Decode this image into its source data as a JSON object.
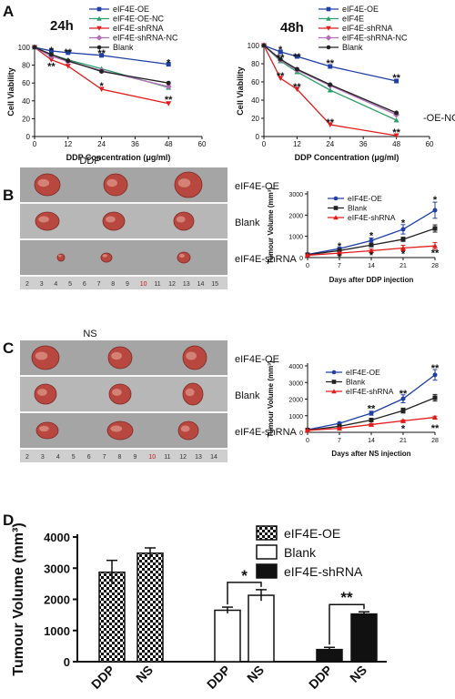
{
  "panels": {
    "A": "A",
    "B": "B",
    "C": "C",
    "D": "D"
  },
  "photos": {
    "B": {
      "title": "DDP",
      "labels": [
        "eIF4E-OE",
        "Blank",
        "eIF4E-shRNA"
      ],
      "ruler": [
        "2",
        "3",
        "4",
        "5",
        "6",
        "7",
        "8",
        "9",
        "10",
        "11",
        "12",
        "13",
        "14",
        "15"
      ]
    },
    "C": {
      "title": "NS",
      "labels": [
        "eIF4E-OE",
        "Blank",
        "eIF4E-shRNA"
      ],
      "ruler": [
        "2",
        "3",
        "4",
        "5",
        "6",
        "7",
        "8",
        "9",
        "10",
        "11",
        "12",
        "13",
        "14"
      ]
    }
  },
  "side_note": "-OE-NC",
  "colors": {
    "oe": "#1f3fa6",
    "oenc": "#2e9e6a",
    "shrna": "#e21b1b",
    "shrnanc": "#b06fb8",
    "blank": "#222222"
  },
  "chart_data": [
    {
      "id": "A1",
      "type": "line",
      "title": "24h",
      "xlabel": "DDP Concentration (μg/ml)",
      "ylabel": "Cell Viability",
      "xlim": [
        0,
        60
      ],
      "ylim": [
        0,
        100
      ],
      "xticks": [
        0,
        12,
        24,
        36,
        48,
        60
      ],
      "yticks": [
        0,
        20,
        40,
        60,
        80,
        100
      ],
      "x": [
        0,
        6,
        12,
        24,
        48
      ],
      "series": [
        {
          "name": "eIF4E-OE",
          "color": "#1f3fa6",
          "marker": "square",
          "values": [
            100,
            96,
            94,
            91,
            81
          ]
        },
        {
          "name": "eIF4E-OE-NC",
          "color": "#2e9e6a",
          "marker": "triangle",
          "values": [
            100,
            92,
            86,
            76,
            55
          ]
        },
        {
          "name": "eIF4E-shRNA",
          "color": "#e21b1b",
          "marker": "triangle-down",
          "values": [
            100,
            86,
            79,
            53,
            37
          ]
        },
        {
          "name": "eIF4E-shRNA-NC",
          "color": "#b06fb8",
          "marker": "diamond",
          "values": [
            100,
            90,
            84,
            74,
            56
          ]
        },
        {
          "name": "Blank",
          "color": "#222222",
          "marker": "circle",
          "values": [
            100,
            92,
            85,
            73,
            60
          ]
        }
      ],
      "annotations": [
        {
          "x": 6,
          "y": 97,
          "text": "*"
        },
        {
          "x": 6,
          "y": 79,
          "text": "**"
        },
        {
          "x": 12,
          "y": 95,
          "text": "**"
        },
        {
          "x": 24,
          "y": 94,
          "text": "**"
        },
        {
          "x": 24,
          "y": 57,
          "text": "*"
        },
        {
          "x": 48,
          "y": 83,
          "text": "*"
        },
        {
          "x": 48,
          "y": 42,
          "text": "**"
        }
      ]
    },
    {
      "id": "A2",
      "type": "line",
      "title": "48h",
      "xlabel": "DDP Concentration (μg/ml)",
      "ylabel": "Cell Viability",
      "xlim": [
        0,
        60
      ],
      "ylim": [
        0,
        100
      ],
      "xticks": [
        0,
        12,
        24,
        36,
        48,
        60
      ],
      "yticks": [
        0,
        20,
        40,
        60,
        80,
        100
      ],
      "x": [
        0,
        6,
        12,
        24,
        48
      ],
      "series": [
        {
          "name": "eIF4E-OE",
          "color": "#1f3fa6",
          "marker": "square",
          "values": [
            100,
            93,
            88,
            77,
            61
          ]
        },
        {
          "name": "eIF4E",
          "color": "#2e9e6a",
          "marker": "triangle",
          "values": [
            100,
            83,
            71,
            51,
            18
          ]
        },
        {
          "name": "eIF4E-shRNA",
          "color": "#e21b1b",
          "marker": "triangle-down",
          "values": [
            100,
            64,
            52,
            13,
            1
          ]
        },
        {
          "name": "eIF4E-shRNA-NC",
          "color": "#b06fb8",
          "marker": "diamond",
          "values": [
            100,
            84,
            73,
            56,
            24
          ]
        },
        {
          "name": "Blank",
          "color": "#222222",
          "marker": "circle",
          "values": [
            100,
            85,
            74,
            57,
            26
          ]
        }
      ],
      "annotations": [
        {
          "x": 6,
          "y": 96,
          "text": "*"
        },
        {
          "x": 6,
          "y": 87,
          "text": "**"
        },
        {
          "x": 6,
          "y": 67,
          "text": "**"
        },
        {
          "x": 12,
          "y": 88,
          "text": "**"
        },
        {
          "x": 12,
          "y": 55,
          "text": "**"
        },
        {
          "x": 24,
          "y": 81,
          "text": "**"
        },
        {
          "x": 24,
          "y": 16,
          "text": "**"
        },
        {
          "x": 48,
          "y": 65,
          "text": "**"
        },
        {
          "x": 48,
          "y": 5,
          "text": "**"
        }
      ]
    },
    {
      "id": "B",
      "type": "line",
      "xlabel": "Days after DDP injection",
      "ylabel": "Tumour Volume (mm³)",
      "xlim": [
        0,
        28
      ],
      "ylim": [
        0,
        3000
      ],
      "xticks": [
        0,
        7,
        14,
        21,
        28
      ],
      "yticks": [
        0,
        1000,
        2000,
        3000
      ],
      "x": [
        0,
        7,
        14,
        21,
        28
      ],
      "series": [
        {
          "name": "eIF4E-OE",
          "color": "#1f3fa6",
          "marker": "circle",
          "values": [
            150,
            420,
            800,
            1330,
            2230
          ],
          "errors": [
            20,
            60,
            120,
            220,
            380
          ]
        },
        {
          "name": "Blank",
          "color": "#222222",
          "marker": "square",
          "values": [
            130,
            330,
            590,
            860,
            1370
          ],
          "errors": [
            20,
            40,
            70,
            100,
            170
          ]
        },
        {
          "name": "eIF4E-shRNA",
          "color": "#e21b1b",
          "marker": "triangle",
          "values": [
            110,
            210,
            320,
            450,
            550
          ],
          "errors": [
            20,
            40,
            80,
            130,
            160
          ]
        }
      ],
      "annotations": [
        {
          "x": 7,
          "y": 560,
          "text": "*"
        },
        {
          "x": 7,
          "y": 40,
          "text": "*"
        },
        {
          "x": 14,
          "y": 1050,
          "text": "*"
        },
        {
          "x": 14,
          "y": 120,
          "text": "*"
        },
        {
          "x": 21,
          "y": 1650,
          "text": "*"
        },
        {
          "x": 21,
          "y": 200,
          "text": "*"
        },
        {
          "x": 28,
          "y": 2750,
          "text": "*"
        },
        {
          "x": 28,
          "y": 240,
          "text": "**"
        }
      ]
    },
    {
      "id": "C",
      "type": "line",
      "xlabel": "Days after NS injection",
      "ylabel": "Tumour Volume (mm³)",
      "xlim": [
        0,
        28
      ],
      "ylim": [
        0,
        4000
      ],
      "xticks": [
        0,
        7,
        14,
        21,
        28
      ],
      "yticks": [
        0,
        1000,
        2000,
        3000,
        4000
      ],
      "x": [
        0,
        7,
        14,
        21,
        28
      ],
      "series": [
        {
          "name": "eIF4E-OE",
          "color": "#1f3fa6",
          "marker": "circle",
          "values": [
            160,
            540,
            1150,
            2020,
            3460
          ],
          "errors": [
            20,
            60,
            120,
            240,
            320
          ]
        },
        {
          "name": "Blank",
          "color": "#222222",
          "marker": "square",
          "values": [
            130,
            360,
            740,
            1310,
            2080
          ],
          "errors": [
            20,
            40,
            80,
            150,
            200
          ]
        },
        {
          "name": "eIF4E-shRNA",
          "color": "#e21b1b",
          "marker": "triangle",
          "values": [
            120,
            240,
            470,
            690,
            900
          ],
          "errors": [
            20,
            30,
            50,
            60,
            70
          ]
        }
      ],
      "annotations": [
        {
          "x": 14,
          "y": 1450,
          "text": "**"
        },
        {
          "x": 21,
          "y": 2350,
          "text": "**"
        },
        {
          "x": 21,
          "y": 250,
          "text": "*"
        },
        {
          "x": 28,
          "y": 3900,
          "text": "**"
        },
        {
          "x": 28,
          "y": 270,
          "text": "**"
        }
      ]
    },
    {
      "id": "D",
      "type": "bar",
      "ylabel": "Tumour Volume (mm³)",
      "ylim": [
        0,
        4000
      ],
      "yticks": [
        0,
        1000,
        2000,
        3000,
        4000
      ],
      "groups": [
        {
          "name": "eIF4E-OE",
          "pattern": "checker",
          "categories": [
            "DDP",
            "NS"
          ],
          "values": [
            2870,
            3480
          ],
          "errors": [
            380,
            170
          ]
        },
        {
          "name": "Blank",
          "pattern": "open",
          "categories": [
            "DDP",
            "NS"
          ],
          "values": [
            1650,
            2130
          ],
          "errors": [
            100,
            180
          ]
        },
        {
          "name": "eIF4E-shRNA",
          "pattern": "solid",
          "categories": [
            "DDP",
            "NS"
          ],
          "values": [
            390,
            1530
          ],
          "errors": [
            70,
            70
          ]
        }
      ],
      "significance": [
        {
          "group": "Blank",
          "text": "*"
        },
        {
          "group": "eIF4E-shRNA",
          "text": "**"
        }
      ]
    }
  ]
}
